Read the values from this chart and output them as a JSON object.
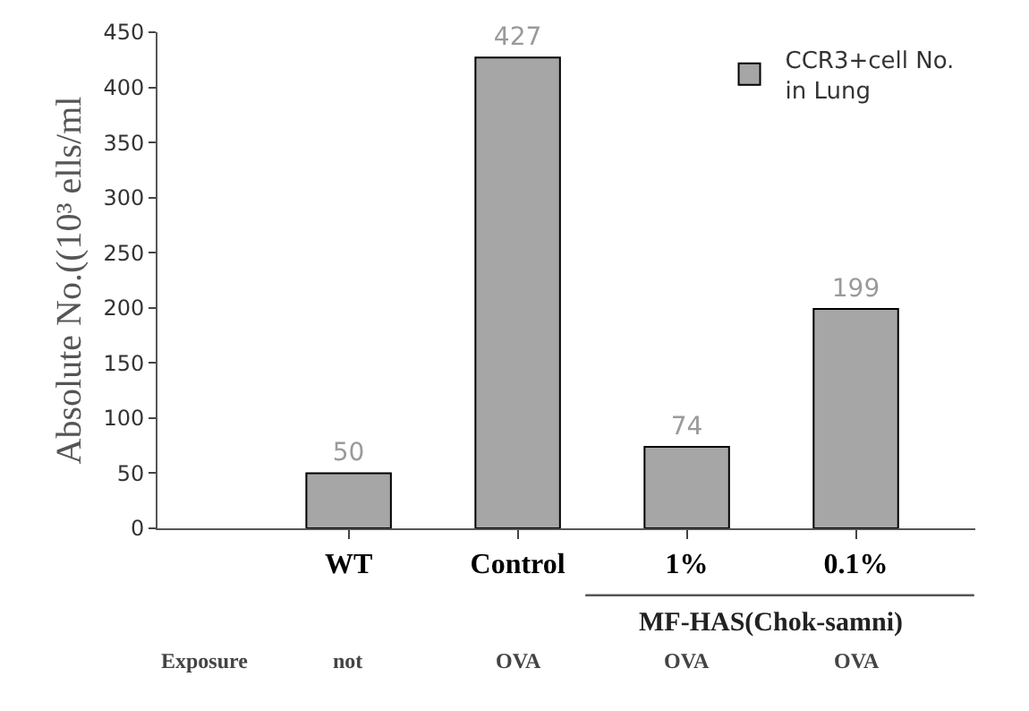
{
  "chart_data": {
    "type": "bar",
    "ylabel": "Absolute No.((10³ ells/ml",
    "categories": [
      "WT",
      "Control",
      "1%",
      "0.1%"
    ],
    "series": [
      {
        "name": "CCR3+cell No. in Lung",
        "color": "#a6a6a6",
        "values": [
          50,
          427,
          74,
          199
        ]
      }
    ],
    "ylim": [
      0,
      450
    ],
    "yticks": [
      0,
      50,
      100,
      150,
      200,
      250,
      300,
      350,
      400,
      450
    ],
    "data_labels": true,
    "legend": "top right",
    "annotations": [
      "MF-HAS(Chok-samni)",
      "Exposure",
      "not",
      "OVA",
      "OVA",
      "OVA"
    ]
  }
}
